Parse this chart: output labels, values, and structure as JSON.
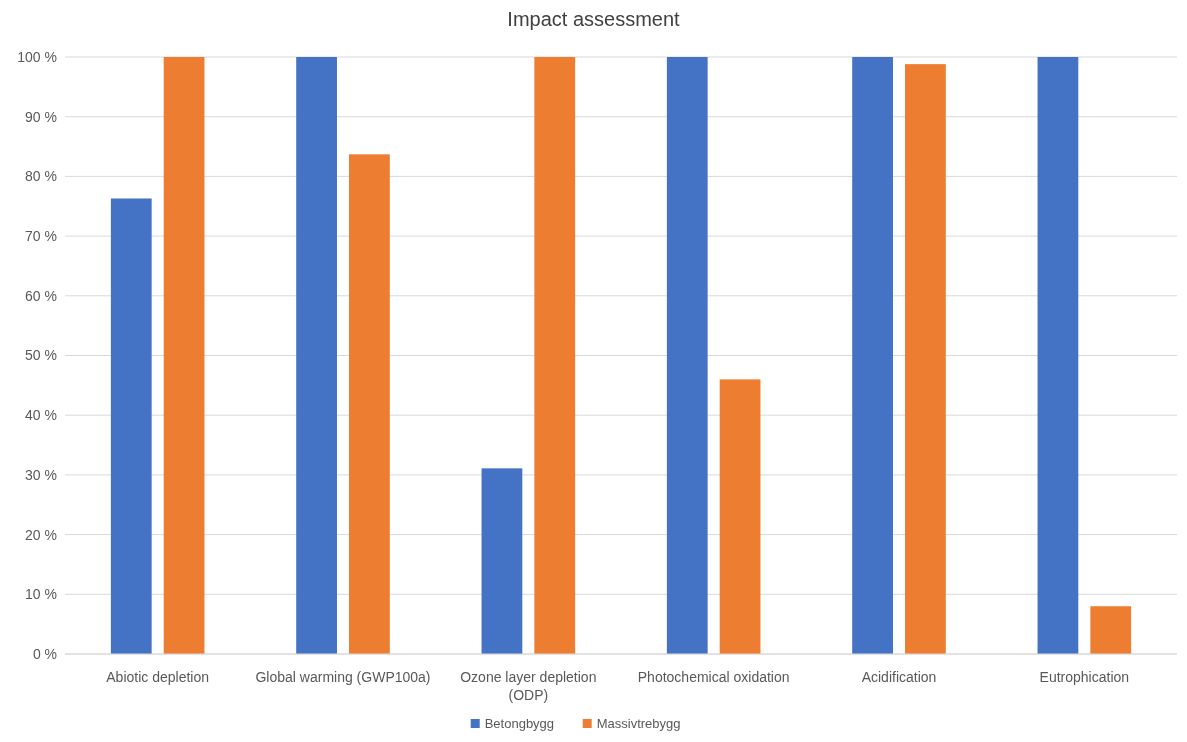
{
  "chart_data": {
    "type": "bar",
    "title": "Impact assessment",
    "categories": [
      "Abiotic depletion",
      "Global warming (GWP100a)",
      "Ozone layer depletion (ODP)",
      "Photochemical oxidation",
      "Acidification",
      "Eutrophication"
    ],
    "series": [
      {
        "name": "Betongbygg",
        "color": "#4472c4",
        "values": [
          76.3,
          100,
          31.1,
          100,
          100,
          100
        ]
      },
      {
        "name": "Massivtrebygg",
        "color": "#ed7d31",
        "values": [
          100,
          83.7,
          100,
          46.0,
          98.8,
          8.0
        ]
      }
    ],
    "ylim": [
      0,
      100
    ],
    "yticks": [
      {
        "value": 0,
        "label": "0 %"
      },
      {
        "value": 10,
        "label": "10 %"
      },
      {
        "value": 20,
        "label": "20 %"
      },
      {
        "value": 30,
        "label": "30 %"
      },
      {
        "value": 40,
        "label": "40 %"
      },
      {
        "value": 50,
        "label": "50 %"
      },
      {
        "value": 60,
        "label": "60 %"
      },
      {
        "value": 70,
        "label": "70 %"
      },
      {
        "value": 80,
        "label": "80 %"
      },
      {
        "value": 90,
        "label": "90 %"
      },
      {
        "value": 100,
        "label": "100 %"
      }
    ],
    "grid": "y",
    "legend": "bottom"
  }
}
